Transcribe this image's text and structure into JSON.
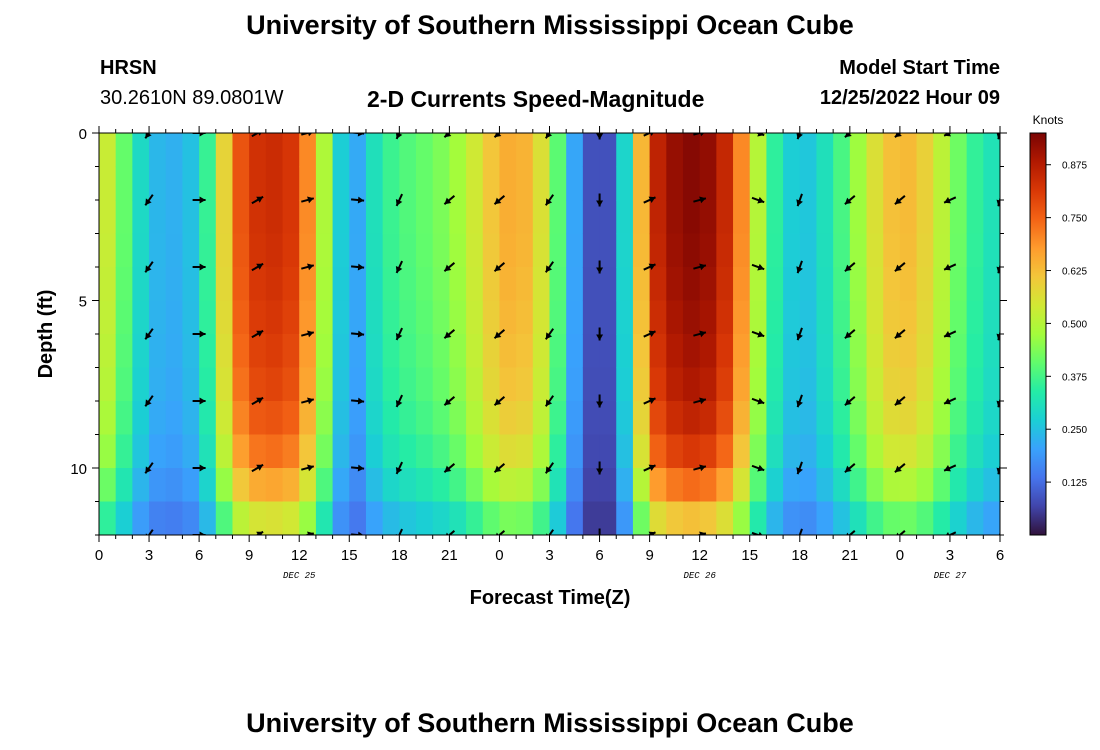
{
  "header": {
    "title": "University of Southern Mississippi Ocean Cube",
    "station": "HRSN",
    "coordinates": "30.2610N  89.0801W",
    "subtitle": "2-D Currents Speed-Magnitude",
    "model_start_label": "Model Start Time",
    "model_start_value": "12/25/2022 Hour 09",
    "footer_title": "University of Southern Mississippi Ocean Cube"
  },
  "chart_data": {
    "type": "heatmap",
    "title": "2-D Currents Speed-Magnitude",
    "xlabel": "Forecast Time(Z)",
    "ylabel": "Depth (ft)",
    "x_range_hours": [
      0,
      54
    ],
    "ylim": [
      0,
      12
    ],
    "y_inverted": true,
    "x_ticks": [
      {
        "hour": 0,
        "label": "0"
      },
      {
        "hour": 3,
        "label": "3"
      },
      {
        "hour": 6,
        "label": "6"
      },
      {
        "hour": 9,
        "label": "9"
      },
      {
        "hour": 12,
        "label": "12"
      },
      {
        "hour": 15,
        "label": "15"
      },
      {
        "hour": 18,
        "label": "18"
      },
      {
        "hour": 21,
        "label": "21"
      },
      {
        "hour": 24,
        "label": "0"
      },
      {
        "hour": 27,
        "label": "3"
      },
      {
        "hour": 30,
        "label": "6"
      },
      {
        "hour": 33,
        "label": "9"
      },
      {
        "hour": 36,
        "label": "12"
      },
      {
        "hour": 39,
        "label": "15"
      },
      {
        "hour": 42,
        "label": "18"
      },
      {
        "hour": 45,
        "label": "21"
      },
      {
        "hour": 48,
        "label": "0"
      },
      {
        "hour": 51,
        "label": "3"
      },
      {
        "hour": 54,
        "label": "6"
      }
    ],
    "day_labels": [
      {
        "hour": 12,
        "label": "DEC 25"
      },
      {
        "hour": 36,
        "label": "DEC 26"
      },
      {
        "hour": 51,
        "label": "DEC 27"
      }
    ],
    "y_ticks": [
      {
        "value": 0,
        "label": "0"
      },
      {
        "value": 5,
        "label": "5"
      },
      {
        "value": 10,
        "label": "10"
      }
    ],
    "colorbar": {
      "title": "Knots",
      "range": [
        0.0,
        0.95
      ],
      "ticks": [
        {
          "value": 0.125,
          "label": "0.125"
        },
        {
          "value": 0.25,
          "label": "0.250"
        },
        {
          "value": 0.375,
          "label": "0.375"
        },
        {
          "value": 0.5,
          "label": "0.500"
        },
        {
          "value": 0.625,
          "label": "0.625"
        },
        {
          "value": 0.75,
          "label": "0.750"
        },
        {
          "value": 0.875,
          "label": "0.875"
        }
      ],
      "stops": [
        "#30123b",
        "#4145ab",
        "#4675ed",
        "#39a2fc",
        "#1bcfd4",
        "#24eca6",
        "#61fc6c",
        "#a4fc3b",
        "#d1e834",
        "#f3c63a",
        "#fe9b2d",
        "#f36315",
        "#d93806",
        "#b11901",
        "#7a0403"
      ]
    },
    "speed_profile_hours": [
      0,
      1,
      2,
      3,
      4,
      5,
      6,
      7,
      8,
      9,
      10,
      11,
      12,
      13,
      14,
      15,
      16,
      17,
      18,
      19,
      20,
      21,
      22,
      23,
      24,
      25,
      26,
      27,
      28,
      29,
      30,
      31,
      32,
      33,
      34,
      35,
      36,
      37,
      38,
      39,
      40,
      41,
      42,
      43,
      44,
      45,
      46,
      47,
      48,
      49,
      50,
      51,
      52,
      53,
      54
    ],
    "speed_profile_knots": [
      0.58,
      0.48,
      0.34,
      0.25,
      0.22,
      0.23,
      0.27,
      0.45,
      0.72,
      0.82,
      0.84,
      0.84,
      0.8,
      0.6,
      0.38,
      0.16,
      0.27,
      0.35,
      0.38,
      0.4,
      0.42,
      0.45,
      0.5,
      0.58,
      0.64,
      0.66,
      0.62,
      0.5,
      0.3,
      0.12,
      0.05,
      0.12,
      0.45,
      0.82,
      0.9,
      0.93,
      0.94,
      0.9,
      0.8,
      0.6,
      0.4,
      0.3,
      0.24,
      0.28,
      0.34,
      0.42,
      0.52,
      0.6,
      0.64,
      0.62,
      0.56,
      0.46,
      0.38,
      0.33,
      0.3
    ],
    "depth_factors": {
      "depth_ft": [
        0,
        2,
        4,
        6,
        8,
        10,
        12
      ],
      "factor": [
        1.0,
        1.0,
        0.99,
        0.97,
        0.94,
        0.85,
        0.6
      ]
    },
    "vector_hours": [
      3,
      6,
      9.5,
      12.5,
      15.5,
      18,
      21,
      24,
      27,
      30,
      33,
      36,
      39.5,
      42,
      45,
      48,
      51,
      54
    ],
    "vector_depths_ft": [
      0,
      2,
      4,
      6,
      8,
      10,
      12
    ],
    "vector_directions_deg": [
      215,
      90,
      60,
      75,
      95,
      205,
      230,
      230,
      215,
      180,
      65,
      75,
      110,
      200,
      230,
      230,
      245,
      195
    ]
  },
  "xlabel": "Forecast Time(Z)",
  "ylabel": "Depth (ft)",
  "colorbar_title": "Knots"
}
